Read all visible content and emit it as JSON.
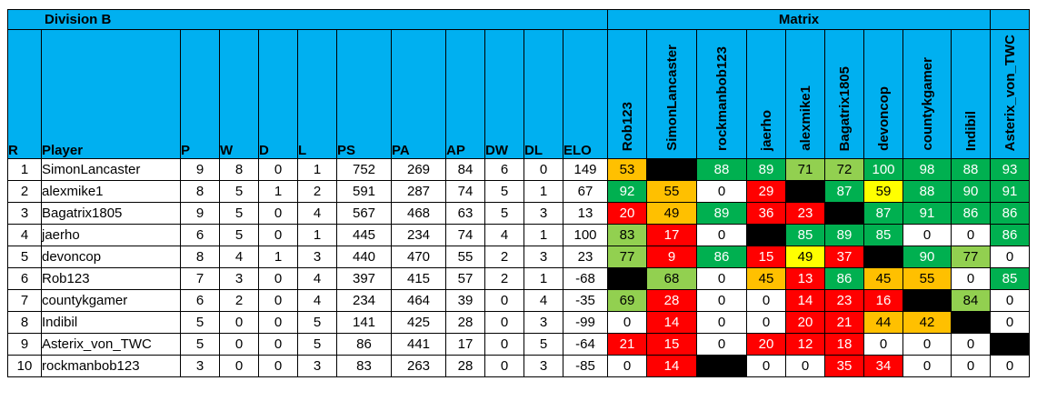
{
  "division_title": "Division B",
  "matrix_title": "Matrix",
  "columns": [
    "R",
    "Player",
    "P",
    "W",
    "D",
    "L",
    "PS",
    "PA",
    "AP",
    "DW",
    "DL",
    "ELO"
  ],
  "matrix_columns": [
    "Rob123",
    "SimonLancaster",
    "rockmanbob123",
    "jaerho",
    "alexmike1",
    "Bagatrix1805",
    "devoncop",
    "countykgamer",
    "Indibil",
    "Asterix_von_TWC"
  ],
  "cell_colors": {
    "G": "#00b050",
    "L": "#92d050",
    "Y": "#ffff00",
    "O": "#ffc000",
    "R": "#ff0000",
    "K": "#000000",
    "W": "#ffffff"
  },
  "rows": [
    {
      "r": "1",
      "player": "SimonLancaster",
      "p": "9",
      "w": "8",
      "d": "0",
      "l": "1",
      "ps": "752",
      "pa": "269",
      "ap": "84",
      "dw": "6",
      "dl": "0",
      "elo": "149",
      "matrix": [
        "53",
        "",
        "88",
        "89",
        "71",
        "72",
        "100",
        "98",
        "88",
        "93"
      ],
      "colors": [
        "O",
        "K",
        "G",
        "G",
        "L",
        "L",
        "G",
        "G",
        "G",
        "G"
      ]
    },
    {
      "r": "2",
      "player": "alexmike1",
      "p": "8",
      "w": "5",
      "d": "1",
      "l": "2",
      "ps": "591",
      "pa": "287",
      "ap": "74",
      "dw": "5",
      "dl": "1",
      "elo": "67",
      "matrix": [
        "92",
        "55",
        "0",
        "29",
        "",
        "87",
        "59",
        "88",
        "90",
        "91"
      ],
      "colors": [
        "G",
        "O",
        "W",
        "R",
        "K",
        "G",
        "Y",
        "G",
        "G",
        "G"
      ]
    },
    {
      "r": "3",
      "player": "Bagatrix1805",
      "p": "9",
      "w": "5",
      "d": "0",
      "l": "4",
      "ps": "567",
      "pa": "468",
      "ap": "63",
      "dw": "5",
      "dl": "3",
      "elo": "13",
      "matrix": [
        "20",
        "49",
        "89",
        "36",
        "23",
        "",
        "87",
        "91",
        "86",
        "86"
      ],
      "colors": [
        "R",
        "O",
        "G",
        "R",
        "R",
        "K",
        "G",
        "G",
        "G",
        "G"
      ]
    },
    {
      "r": "4",
      "player": "jaerho",
      "p": "6",
      "w": "5",
      "d": "0",
      "l": "1",
      "ps": "445",
      "pa": "234",
      "ap": "74",
      "dw": "4",
      "dl": "1",
      "elo": "100",
      "matrix": [
        "83",
        "17",
        "0",
        "",
        "85",
        "89",
        "85",
        "0",
        "0",
        "86"
      ],
      "colors": [
        "L",
        "R",
        "W",
        "K",
        "G",
        "G",
        "G",
        "W",
        "W",
        "G"
      ]
    },
    {
      "r": "5",
      "player": "devoncop",
      "p": "8",
      "w": "4",
      "d": "1",
      "l": "3",
      "ps": "440",
      "pa": "470",
      "ap": "55",
      "dw": "2",
      "dl": "3",
      "elo": "23",
      "matrix": [
        "77",
        "9",
        "86",
        "15",
        "49",
        "37",
        "",
        "90",
        "77",
        "0"
      ],
      "colors": [
        "L",
        "R",
        "G",
        "R",
        "Y",
        "R",
        "K",
        "G",
        "L",
        "W"
      ]
    },
    {
      "r": "6",
      "player": "Rob123",
      "p": "7",
      "w": "3",
      "d": "0",
      "l": "4",
      "ps": "397",
      "pa": "415",
      "ap": "57",
      "dw": "2",
      "dl": "1",
      "elo": "-68",
      "matrix": [
        "",
        "68",
        "0",
        "45",
        "13",
        "86",
        "45",
        "55",
        "0",
        "85"
      ],
      "colors": [
        "K",
        "L",
        "W",
        "O",
        "R",
        "G",
        "O",
        "O",
        "W",
        "G"
      ]
    },
    {
      "r": "7",
      "player": "countykgamer",
      "p": "6",
      "w": "2",
      "d": "0",
      "l": "4",
      "ps": "234",
      "pa": "464",
      "ap": "39",
      "dw": "0",
      "dl": "4",
      "elo": "-35",
      "matrix": [
        "69",
        "28",
        "0",
        "0",
        "14",
        "23",
        "16",
        "",
        "84",
        "0"
      ],
      "colors": [
        "L",
        "R",
        "W",
        "W",
        "R",
        "R",
        "R",
        "K",
        "L",
        "W"
      ]
    },
    {
      "r": "8",
      "player": "Indibil",
      "p": "5",
      "w": "0",
      "d": "0",
      "l": "5",
      "ps": "141",
      "pa": "425",
      "ap": "28",
      "dw": "0",
      "dl": "3",
      "elo": "-99",
      "matrix": [
        "0",
        "14",
        "0",
        "0",
        "20",
        "21",
        "44",
        "42",
        "",
        "0"
      ],
      "colors": [
        "W",
        "R",
        "W",
        "W",
        "R",
        "R",
        "O",
        "O",
        "K",
        "W"
      ]
    },
    {
      "r": "9",
      "player": "Asterix_von_TWC",
      "p": "5",
      "w": "0",
      "d": "0",
      "l": "5",
      "ps": "86",
      "pa": "441",
      "ap": "17",
      "dw": "0",
      "dl": "5",
      "elo": "-64",
      "matrix": [
        "21",
        "15",
        "0",
        "20",
        "12",
        "18",
        "0",
        "0",
        "0",
        ""
      ],
      "colors": [
        "R",
        "R",
        "W",
        "R",
        "R",
        "R",
        "W",
        "W",
        "W",
        "K"
      ]
    },
    {
      "r": "10",
      "player": "rockmanbob123",
      "p": "3",
      "w": "0",
      "d": "0",
      "l": "3",
      "ps": "83",
      "pa": "263",
      "ap": "28",
      "dw": "0",
      "dl": "3",
      "elo": "-85",
      "matrix": [
        "0",
        "14",
        "",
        "0",
        "0",
        "35",
        "34",
        "0",
        "0",
        "0"
      ],
      "colors": [
        "W",
        "R",
        "K",
        "W",
        "W",
        "R",
        "R",
        "W",
        "W",
        "W"
      ]
    }
  ]
}
